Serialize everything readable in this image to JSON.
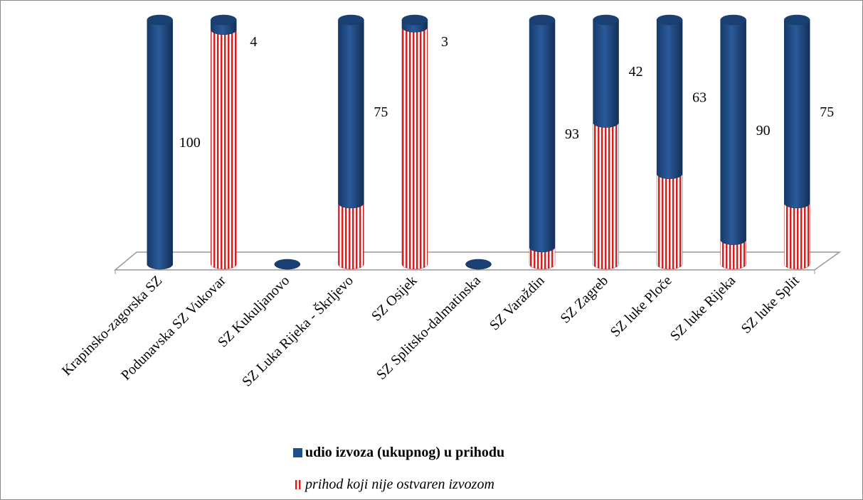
{
  "chart_data": {
    "type": "stacked_cylinder",
    "categories": [
      "Krapinsko-zagorska SZ",
      "Podunavska SZ Vukovar",
      "SZ Kukuljanovo",
      "SZ Luka Rijeka - Škrljevo",
      "SZ Osijek",
      "SZ Splitsko-dalmatinska",
      "SZ Varaždin",
      "SZ Zagreb",
      "SZ luke Ploče",
      "SZ luke Rijeka",
      "SZ luke Split"
    ],
    "series": [
      {
        "name": "udio izvoza (ukupnog) u prihodu",
        "color": "#1f4e8c",
        "values": [
          100,
          4,
          0,
          75,
          3,
          0,
          93,
          42,
          63,
          90,
          75
        ],
        "value_labels": [
          "100",
          "4",
          null,
          "75",
          "3",
          null,
          "93",
          "42",
          "63",
          "90",
          "75"
        ]
      },
      {
        "name": "prihod koji nije ostvaren izvozom",
        "color": "#d42020",
        "values": [
          0,
          96,
          0,
          25,
          97,
          0,
          7,
          58,
          37,
          10,
          25
        ]
      }
    ],
    "ylim": [
      0,
      100
    ],
    "legend": "bottom"
  }
}
